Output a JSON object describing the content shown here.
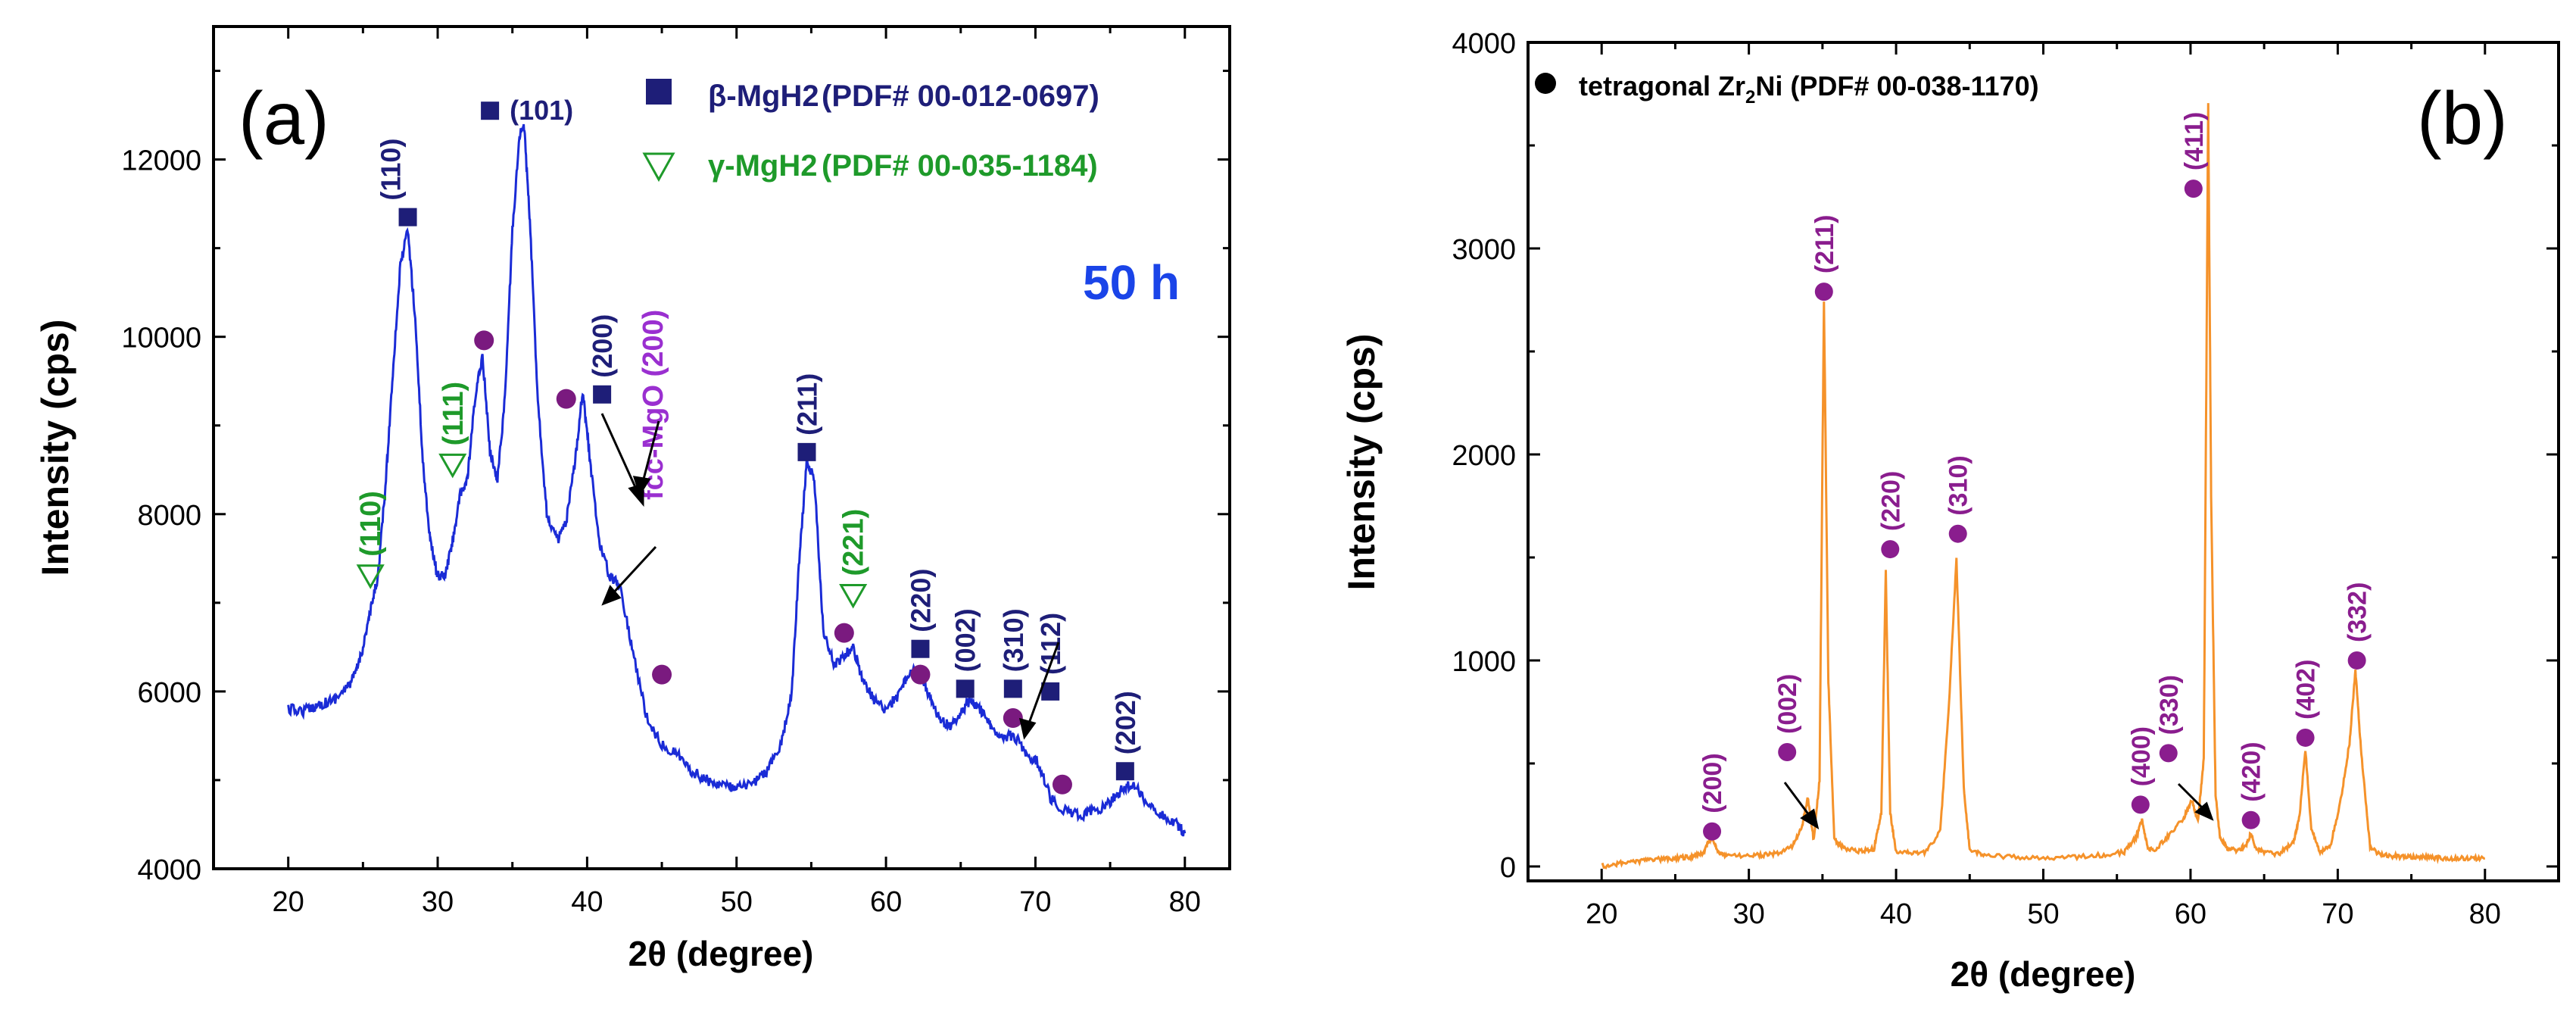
{
  "colors": {
    "a_line": "#1a2bd6",
    "b_line": "#f5922a",
    "beta": "#1e1e78",
    "gamma": "#1e9a2a",
    "magenta": "#7a1a7f",
    "purple_label": "#9a2fd0",
    "fiftyh": "#1a44e8",
    "zr2ni_marker": "#8a1d8e"
  },
  "chart_data": [
    {
      "type": "line",
      "panel_label": "(a)",
      "annotation_time": "50 h",
      "xlabel": "2θ (degree)",
      "ylabel": "Intensity (cps)",
      "xlim": [
        15,
        83
      ],
      "ylim": [
        4000,
        13500
      ],
      "xticks": [
        20,
        30,
        40,
        50,
        60,
        70,
        80
      ],
      "yticks": [
        4000,
        6000,
        8000,
        10000,
        12000
      ],
      "legend": [
        {
          "symbol": "square",
          "label": "β-MgH2",
          "pdf": "(PDF# 00-012-0697)"
        },
        {
          "symbol": "triangle",
          "label": "γ-MgH2",
          "pdf": "(PDF# 00-035-1184)"
        }
      ],
      "series": [
        {
          "name": "50 h",
          "x": [
            20,
            21,
            22,
            23,
            24,
            24.5,
            25,
            25.5,
            26,
            26.5,
            27,
            27.5,
            28,
            28.5,
            29,
            29.5,
            30,
            30.5,
            31,
            31.5,
            32,
            32.5,
            33,
            33.5,
            34,
            34.5,
            35,
            35.5,
            35.8,
            36.2,
            36.7,
            37.3,
            38,
            38.6,
            39.2,
            39.7,
            40.2,
            40.8,
            41.5,
            42.2,
            43,
            44,
            45,
            46,
            47,
            48,
            49,
            50,
            51,
            52,
            53,
            53.7,
            54.2,
            54.7,
            55.2,
            55.8,
            56.5,
            57.2,
            57.8,
            58.5,
            59.2,
            60,
            60.8,
            61.5,
            62.2,
            62.8,
            63.5,
            64.3,
            65,
            65.6,
            66.3,
            67,
            67.8,
            68.6,
            69.4,
            70.2,
            71,
            72,
            73,
            74,
            75,
            75.8,
            76.5,
            77.5,
            78.5,
            79.5,
            80
          ],
          "y": [
            5800,
            5780,
            5850,
            5900,
            6050,
            6200,
            6500,
            6900,
            7300,
            8300,
            9600,
            10800,
            11200,
            10200,
            8600,
            7700,
            7300,
            7300,
            7700,
            8200,
            8400,
            9300,
            9800,
            8700,
            8400,
            9300,
            11200,
            12300,
            12350,
            11200,
            9300,
            8000,
            7700,
            7900,
            8600,
            9400,
            8600,
            7700,
            7300,
            7200,
            6500,
            5700,
            5400,
            5300,
            5100,
            5000,
            4950,
            4900,
            4950,
            5100,
            5400,
            6000,
            7500,
            8600,
            8400,
            6700,
            6300,
            6400,
            6500,
            6100,
            5900,
            5800,
            5950,
            6200,
            6250,
            6000,
            5700,
            5600,
            5750,
            5900,
            5800,
            5600,
            5500,
            5500,
            5300,
            5200,
            4800,
            4650,
            4600,
            4650,
            4750,
            4900,
            4950,
            4750,
            4600,
            4500,
            4400
          ]
        }
      ],
      "beta_marks": [
        {
          "x": 28,
          "y": 11350,
          "label": "(110)"
        },
        {
          "x": 33.5,
          "y": 12550,
          "label": "(101)"
        },
        {
          "x": 41,
          "y": 9350,
          "label": "(200)"
        },
        {
          "x": 54.7,
          "y": 8700,
          "label": "(211)"
        },
        {
          "x": 62.3,
          "y": 6480,
          "label": "(220)"
        },
        {
          "x": 65.3,
          "y": 6030,
          "label": "(002)"
        },
        {
          "x": 68.5,
          "y": 6030,
          "label": "(310)"
        },
        {
          "x": 71,
          "y": 6000,
          "label": "(112)"
        },
        {
          "x": 76,
          "y": 5100,
          "label": "(202)"
        }
      ],
      "gamma_marks": [
        {
          "x": 25.5,
          "y": 7300,
          "label": "(110)"
        },
        {
          "x": 31,
          "y": 8550,
          "label": "(111)"
        },
        {
          "x": 57.8,
          "y": 7080,
          "label": "(221)"
        }
      ],
      "mgo_marks": [
        {
          "x": 33.1,
          "y": 9960
        },
        {
          "x": 38.6,
          "y": 9300
        },
        {
          "x": 45,
          "y": 6190
        },
        {
          "x": 57.2,
          "y": 6660
        },
        {
          "x": 62.3,
          "y": 6190
        },
        {
          "x": 68.5,
          "y": 5700
        },
        {
          "x": 71.8,
          "y": 4950
        }
      ],
      "mgo_label": "fcc-MgO (200)"
    },
    {
      "type": "line",
      "panel_label": "(b)",
      "xlabel": "2θ (degree)",
      "ylabel": "Intensity (cps)",
      "xlim": [
        15,
        85
      ],
      "ylim": [
        -70,
        4000
      ],
      "xticks": [
        20,
        30,
        40,
        50,
        60,
        70,
        80
      ],
      "yticks": [
        0,
        1000,
        2000,
        3000,
        4000
      ],
      "legend": [
        {
          "symbol": "circle",
          "label": "tetragonal Zr",
          "sub": "2",
          "label_tail": "Ni",
          "pdf": "(PDF# 00-038-1170)"
        }
      ],
      "series": [
        {
          "name": "Zr2Ni",
          "x": [
            20,
            21,
            22,
            23,
            24,
            25,
            26,
            26.8,
            27.2,
            27.5,
            27.9,
            28.5,
            30,
            31,
            32,
            33,
            33.6,
            34,
            34.4,
            34.8,
            35.1,
            35.4,
            35.8,
            36.5,
            37.5,
            38.5,
            39,
            39.3,
            39.6,
            40,
            41,
            42,
            43,
            43.6,
            44.1,
            44.6,
            45,
            46,
            48,
            50,
            52,
            54,
            55.5,
            56.3,
            56.7,
            57.1,
            57.6,
            58.5,
            59.5,
            60.1,
            60.5,
            60.9,
            61.2,
            61.4,
            61.7,
            62,
            62.5,
            63.2,
            63.8,
            64.1,
            64.4,
            65,
            66,
            67,
            67.4,
            67.8,
            68.2,
            68.8,
            69.5,
            70.2,
            70.8,
            71.2,
            71.6,
            72.2,
            73,
            74,
            75,
            76,
            77,
            78,
            79,
            80
          ],
          "y": [
            0,
            12,
            22,
            30,
            36,
            40,
            46,
            58,
            110,
            145,
            70,
            50,
            52,
            55,
            65,
            100,
            190,
            330,
            130,
            420,
            2750,
            900,
            130,
            85,
            75,
            85,
            260,
            1430,
            260,
            75,
            65,
            70,
            170,
            800,
            1490,
            380,
            80,
            55,
            45,
            40,
            45,
            55,
            70,
            140,
            225,
            90,
            80,
            150,
            230,
            320,
            220,
            520,
            3700,
            1800,
            350,
            140,
            90,
            75,
            110,
            160,
            95,
            65,
            60,
            120,
            240,
            570,
            180,
            70,
            100,
            320,
            600,
            950,
            550,
            90,
            55,
            50,
            45,
            45,
            40,
            40,
            40,
            40
          ]
        }
      ],
      "marks": [
        {
          "x": 27.5,
          "y": 170,
          "label": "(200)"
        },
        {
          "x": 32.6,
          "y": 555,
          "label": "(002)"
        },
        {
          "x": 35.1,
          "y": 2790,
          "label": "(211)"
        },
        {
          "x": 39.6,
          "y": 1540,
          "label": "(220)"
        },
        {
          "x": 44.2,
          "y": 1615,
          "label": "(310)"
        },
        {
          "x": 56.6,
          "y": 300,
          "label": "(400)"
        },
        {
          "x": 58.5,
          "y": 550,
          "label": "(330)"
        },
        {
          "x": 60.2,
          "y": 3290,
          "label": "(411)"
        },
        {
          "x": 64.1,
          "y": 225,
          "label": "(420)"
        },
        {
          "x": 67.8,
          "y": 625,
          "label": "(402)"
        },
        {
          "x": 71.3,
          "y": 1000,
          "label": "(332)"
        }
      ]
    }
  ]
}
